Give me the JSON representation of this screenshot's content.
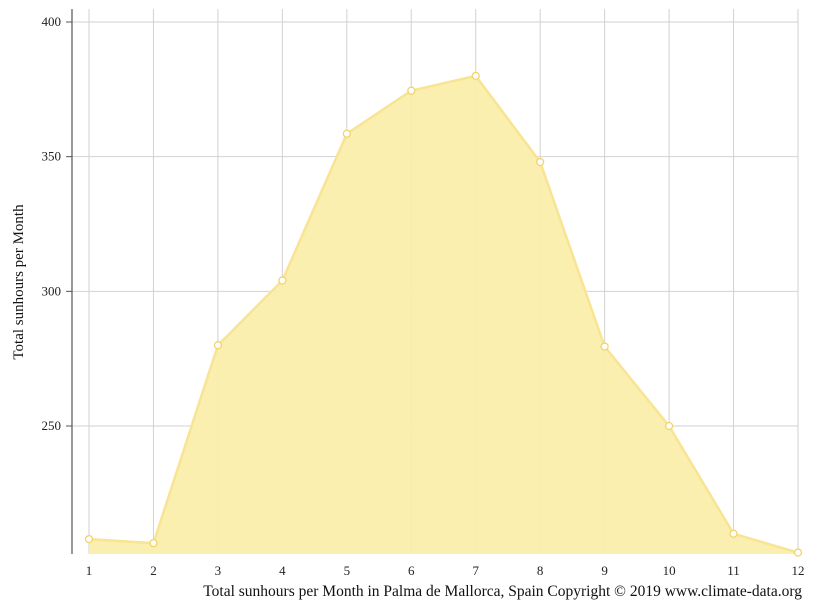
{
  "chart_data": {
    "type": "area",
    "x": [
      1,
      2,
      3,
      4,
      5,
      6,
      7,
      8,
      9,
      10,
      11,
      12
    ],
    "x_tick_labels": [
      "1",
      "2",
      "3",
      "4",
      "5",
      "6",
      "7",
      "8",
      "9",
      "10",
      "11",
      "12"
    ],
    "values": [
      208,
      206.5,
      280,
      304,
      358.5,
      374.5,
      380,
      348,
      279.5,
      250,
      210,
      203
    ],
    "ylabel": "Total sunhours per Month",
    "y_ticks": [
      250,
      300,
      350,
      400
    ],
    "y_tick_labels": [
      "250",
      "300",
      "350",
      "400"
    ],
    "ylim": [
      203,
      405
    ],
    "xlim": [
      1,
      12
    ],
    "grid": true,
    "colors": {
      "fill": "#faeeaa",
      "line": "#f8e493",
      "point_stroke": "#f2d46a",
      "grid": "#d2d2d2",
      "axis": "#555555"
    }
  },
  "caption": "Total sunhours per Month in Palma de Mallorca, Spain Copyright © 2019 www.climate-data.org"
}
